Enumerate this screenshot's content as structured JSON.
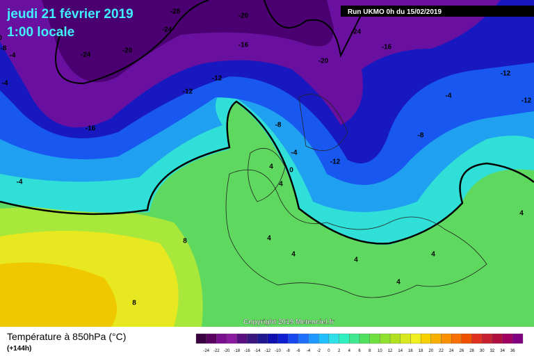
{
  "header": {
    "title": "jeudi 21 février 2019",
    "subtitle": "1:00 locale",
    "run": "Run UKMO 0h du 15/02/2019"
  },
  "map": {
    "contour_labels": [
      "-28",
      "-24",
      "-20",
      "-24",
      "-20",
      "-16",
      "-20",
      "-24",
      "-16",
      "-12",
      "-4",
      "-8",
      "0",
      "-4",
      "-12",
      "-16",
      "-12",
      "-4",
      "-8",
      "-12",
      "-8",
      "-4",
      "4",
      "4",
      "0",
      "-12",
      "-4",
      "8",
      "4",
      "4",
      "4",
      "4",
      "8",
      "4",
      "4"
    ],
    "copyright": "Copyright 2019 Meteociel.fr"
  },
  "footer": {
    "label": "Température à 850hPa (°C)",
    "lead": "(+144h)",
    "scale_ticks": [
      -24,
      -22,
      -20,
      -18,
      -16,
      -14,
      -12,
      -10,
      -8,
      -6,
      -4,
      -2,
      0,
      2,
      4,
      6,
      8,
      10,
      12,
      14,
      16,
      18,
      20,
      22,
      24,
      26,
      28,
      30,
      32,
      34,
      36
    ]
  }
}
